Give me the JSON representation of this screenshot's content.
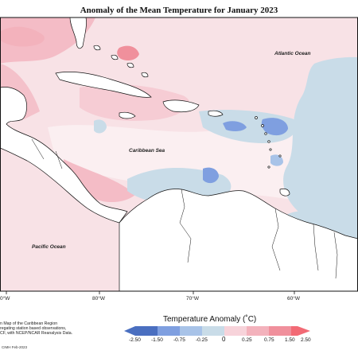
{
  "map": {
    "title": "Anomaly of the Mean Temperature for January 2023",
    "labels": {
      "atlantic": "Atlantic Ocean",
      "caribbean": "Caribbean Sea",
      "pacific": "Pacific Ocean"
    },
    "longitude_ticks": [
      "0°W",
      "80°W",
      "70°W",
      "60°W"
    ]
  },
  "legend": {
    "title": "Temperature Anomaly (˚C)",
    "ticks": [
      "-2.50",
      "-1.50",
      "-0.75",
      "-0.25",
      "0",
      "0.25",
      "0.75",
      "1.50",
      "2.50"
    ],
    "colors": [
      "#4a6fc0",
      "#7f9fe0",
      "#a8c3e8",
      "#c9dce8",
      "#ffffff",
      "#f7d3da",
      "#f3b2bc",
      "#f0909c",
      "#f26a75"
    ]
  },
  "caption": {
    "lines": [
      "n Map of the Caribbean Region",
      "regating station based observations,",
      "CF, with NCEP/NCAR Reanalysis Data."
    ]
  },
  "credit": "CIMH Feb-2023"
}
